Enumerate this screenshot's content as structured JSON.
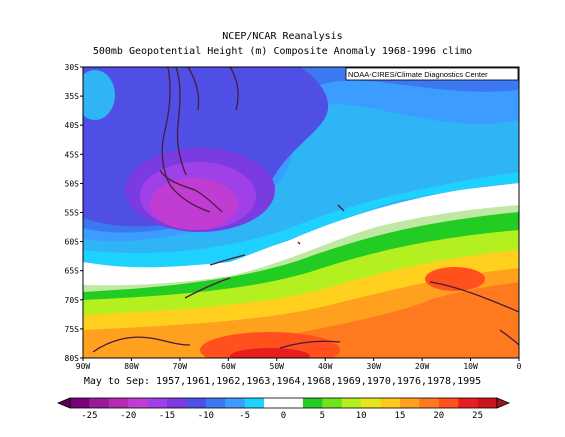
{
  "chart_data": {
    "type": "heatmap",
    "title": "NCEP/NCAR Reanalysis",
    "subtitle": "500mb Geopotential Height (m) Composite Anomaly 1968-1996 climo",
    "credit": "NOAA-CIRES/Climate Diagnostics Center",
    "caption": "May to Sep: 1957,1961,1962,1963,1964,1968,1969,1970,1976,1978,1995",
    "x_ticks": [
      "90W",
      "80W",
      "70W",
      "60W",
      "50W",
      "40W",
      "30W",
      "20W",
      "10W",
      "0"
    ],
    "y_ticks": [
      "30S",
      "35S",
      "40S",
      "45S",
      "50S",
      "55S",
      "60S",
      "65S",
      "70S",
      "75S",
      "80S"
    ],
    "xlim": [
      -90,
      0
    ],
    "ylim": [
      -80,
      -30
    ],
    "colorbar_ticks": [
      "-25",
      "-20",
      "-15",
      "-10",
      "-5",
      "0",
      "5",
      "10",
      "15",
      "20",
      "25"
    ],
    "colorbar_colors": [
      "#7b007b",
      "#9a1b9a",
      "#b42ab4",
      "#c03cd2",
      "#a040e8",
      "#7a3ce0",
      "#4f4fe6",
      "#3c78ef",
      "#3c9cff",
      "#1ed2ff",
      "#ffffff",
      "#ffffff",
      "#22cc22",
      "#6ee31f",
      "#b4f01f",
      "#e6e61e",
      "#ffc81e",
      "#ffa01e",
      "#ff7a1e",
      "#ff501e",
      "#e61e1e",
      "#c8141e"
    ],
    "color_range": [
      -27.5,
      27.5
    ]
  }
}
